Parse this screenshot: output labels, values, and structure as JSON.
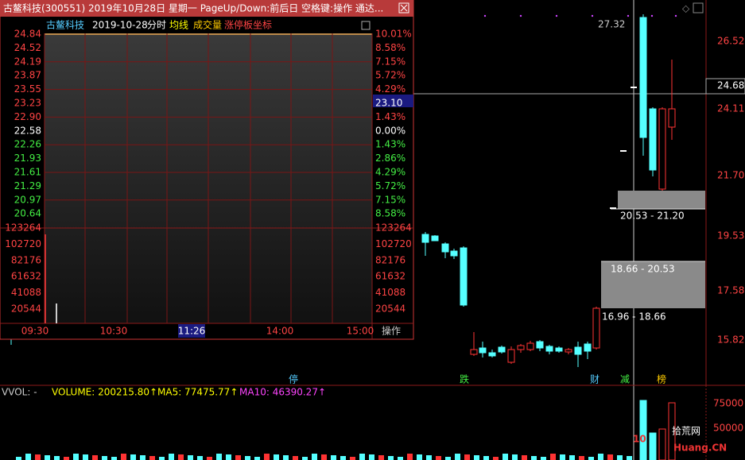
{
  "popup": {
    "title": "古鳌科技(300551) 2019年10月28日 星期一 PageUp/Down:前后日 空格键:操作 通达...",
    "header": {
      "name": "古鳌科技",
      "date": "2019-10-28",
      "mode": "分时",
      "avg": "均线",
      "volume": "成交量",
      "limit": "涨停板坐标"
    },
    "price_labels": [
      "24.84",
      "24.52",
      "24.19",
      "23.87",
      "23.55",
      "23.23",
      "22.90",
      "22.58",
      "22.26",
      "21.93",
      "21.61",
      "21.29",
      "20.97",
      "20.64"
    ],
    "pct_labels": [
      "10.01%",
      "8.58%",
      "7.15%",
      "5.72%",
      "4.29%",
      "23.10",
      "1.43%",
      "0.00%",
      "1.43%",
      "2.86%",
      "4.29%",
      "5.72%",
      "7.15%",
      "8.58%"
    ],
    "vol_labels": [
      "123264",
      "102720",
      "82176",
      "61632",
      "41088",
      "20544"
    ],
    "times": [
      "09:30",
      "10:30",
      "11:26",
      "14:00",
      "15:00"
    ],
    "action": "操作"
  },
  "main": {
    "price_axis": [
      "26.52",
      "24.68",
      "24.11",
      "21.70",
      "19.53",
      "17.58",
      "15.82"
    ],
    "high_label": "27.32",
    "zones": [
      "20.53 - 21.20",
      "18.66 - 20.53",
      "16.96 - 18.66"
    ],
    "markers": [
      "停",
      "跌",
      "财",
      "减",
      "榜"
    ]
  },
  "volume_panel": {
    "vvol": "VVOL: -",
    "volume": "VOLUME: 200215.80↑",
    "ma5": "MA5: 77475.77↑",
    "ma10": "MA10: 46390.27↑",
    "axis": [
      "75000",
      "50000"
    ]
  },
  "watermark": {
    "logo": "10",
    "name": "拾荒网",
    "site": "Huang.CN"
  }
}
